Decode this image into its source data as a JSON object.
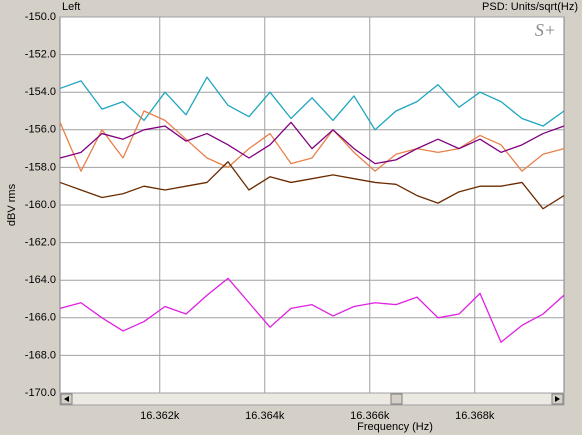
{
  "chart_data": {
    "type": "line",
    "title": "Left",
    "subtitle": "PSD: Units/sqrt(Hz)",
    "logo": "S+",
    "xlabel": "Frequency (Hz)",
    "ylabel": "dBV rms",
    "grid": true,
    "x": [
      16360.1,
      16360.5,
      16360.9,
      16361.3,
      16361.7,
      16362.1,
      16362.5,
      16362.9,
      16363.3,
      16363.7,
      16364.1,
      16364.5,
      16364.9,
      16365.3,
      16365.7,
      16366.1,
      16366.5,
      16366.9,
      16367.3,
      16367.7,
      16368.1,
      16368.5,
      16368.9,
      16369.3,
      16369.7
    ],
    "xlim": [
      16360.1,
      16369.7
    ],
    "xticks": [
      {
        "value": 16362,
        "label": "16.362k"
      },
      {
        "value": 16364,
        "label": "16.364k"
      },
      {
        "value": 16366,
        "label": "16.366k"
      },
      {
        "value": 16368,
        "label": "16.368k"
      }
    ],
    "ylim": [
      -170,
      -150
    ],
    "yticks": [
      {
        "value": -170,
        "label": "-170.0"
      },
      {
        "value": -168,
        "label": "-168.0"
      },
      {
        "value": -166,
        "label": "-166.0"
      },
      {
        "value": -164,
        "label": "-164.0"
      },
      {
        "value": -162,
        "label": "-162.0"
      },
      {
        "value": -160,
        "label": "-160.0"
      },
      {
        "value": -158,
        "label": "-158.0"
      },
      {
        "value": -156,
        "label": "-156.0"
      },
      {
        "value": -154,
        "label": "-154.0"
      },
      {
        "value": -152,
        "label": "-152.0"
      },
      {
        "value": -150,
        "label": "-150.0"
      }
    ],
    "series": [
      {
        "color": "#1fa6c0",
        "values": [
          -153.8,
          -153.4,
          -154.9,
          -154.5,
          -155.5,
          -154.0,
          -155.2,
          -153.2,
          -154.7,
          -155.3,
          -154.0,
          -155.4,
          -154.3,
          -155.5,
          -154.2,
          -156.0,
          -155.0,
          -154.5,
          -153.6,
          -154.8,
          -154.0,
          -154.5,
          -155.4,
          -155.8,
          -155.0
        ]
      },
      {
        "color": "#e8804a",
        "values": [
          -155.6,
          -158.2,
          -156.0,
          -157.5,
          -155.0,
          -155.5,
          -156.5,
          -157.5,
          -158.0,
          -157.0,
          -156.2,
          -157.8,
          -157.5,
          -156.0,
          -157.2,
          -158.2,
          -157.3,
          -157.0,
          -157.2,
          -157.0,
          -156.3,
          -156.8,
          -158.2,
          -157.3,
          -157.0
        ]
      },
      {
        "color": "#800080",
        "values": [
          -157.5,
          -157.2,
          -156.2,
          -156.5,
          -156.0,
          -155.8,
          -156.6,
          -156.2,
          -156.8,
          -157.5,
          -156.8,
          -155.6,
          -157.0,
          -156.0,
          -157.0,
          -157.8,
          -157.6,
          -157.0,
          -156.5,
          -157.0,
          -156.5,
          -157.2,
          -156.8,
          -156.2,
          -155.8
        ]
      },
      {
        "color": "#6b2a00",
        "values": [
          -158.8,
          -159.2,
          -159.6,
          -159.4,
          -159.0,
          -159.2,
          -159.0,
          -158.8,
          -157.7,
          -159.2,
          -158.5,
          -158.8,
          -158.6,
          -158.4,
          -158.6,
          -158.8,
          -158.9,
          -159.5,
          -159.9,
          -159.3,
          -159.0,
          -159.0,
          -158.8,
          -160.2,
          -159.5
        ]
      },
      {
        "color": "#e020e0",
        "values": [
          -165.5,
          -165.2,
          -166.0,
          -166.7,
          -166.2,
          -165.4,
          -165.8,
          -164.8,
          -163.9,
          -165.2,
          -166.5,
          -165.5,
          -165.3,
          -165.9,
          -165.4,
          -165.2,
          -165.3,
          -164.9,
          -166.0,
          -165.8,
          -164.7,
          -167.3,
          -166.4,
          -165.8,
          -164.8
        ]
      }
    ]
  }
}
